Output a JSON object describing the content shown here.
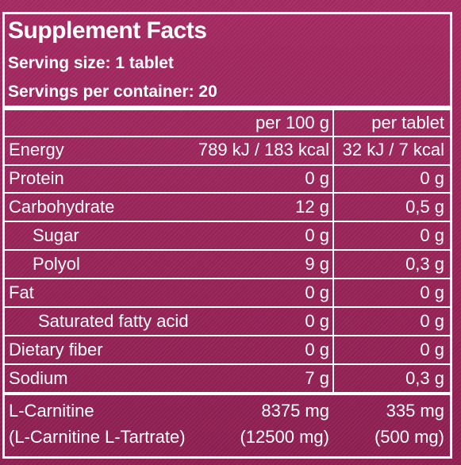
{
  "title": "Supplement Facts",
  "serving_size": "Serving size: 1 tablet",
  "servings_per_container": "Servings per container: 20",
  "columns": {
    "per100": "per 100 g",
    "pertablet": "per tablet"
  },
  "rows": [
    {
      "label": "Energy",
      "per100": "789 kJ / 183 kcal",
      "pertablet": "32 kJ / 7 kcal"
    },
    {
      "label": "Protein",
      "per100": "0 g",
      "pertablet": "0 g"
    },
    {
      "label": "Carbohydrate",
      "per100": "12 g",
      "pertablet": "0,5 g"
    },
    {
      "label": "Sugar",
      "per100": "0 g",
      "pertablet": "0 g"
    },
    {
      "label": "Polyol",
      "per100": "9 g",
      "pertablet": "0,3 g"
    },
    {
      "label": "Fat",
      "per100": "0 g",
      "pertablet": "0 g"
    },
    {
      "label": "Saturated fatty acid",
      "per100": "0 g",
      "pertablet": "0 g"
    },
    {
      "label": "Dietary fiber",
      "per100": "0 g",
      "pertablet": "0 g"
    },
    {
      "label": "Sodium",
      "per100": "7 g",
      "pertablet": "0,3 g"
    }
  ],
  "carnitine": {
    "label": "L-Carnitine",
    "per100": "8375 mg",
    "pertablet": "335 mg",
    "label2": "(L-Carnitine L-Tartrate)",
    "per100_2": "(12500 mg)",
    "pertablet_2": "(500 mg)"
  },
  "colors": {
    "background": "#9a2459",
    "text": "#ffffff"
  }
}
